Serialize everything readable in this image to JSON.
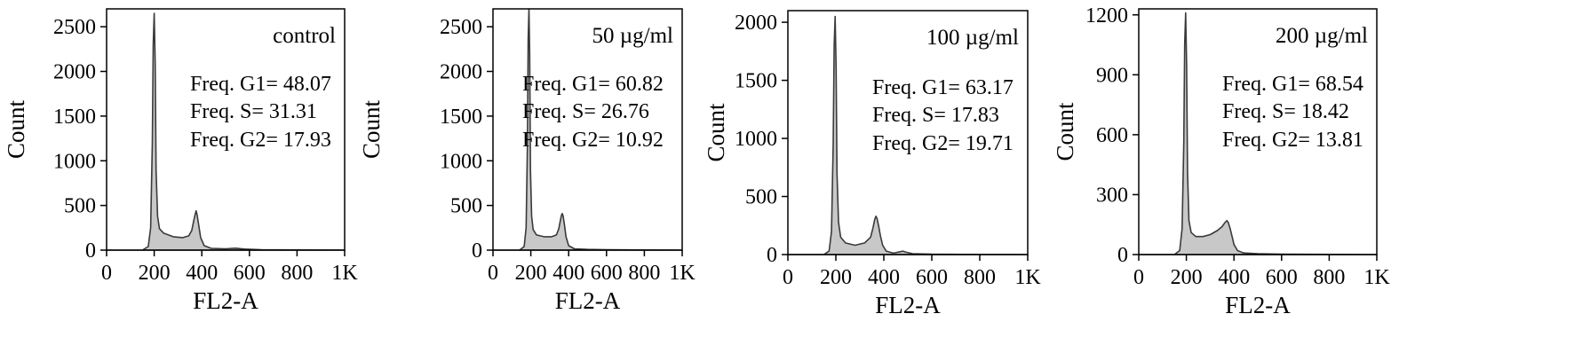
{
  "colors": {
    "fill": "#c8c8c8",
    "stroke": "#3a3a3a",
    "frame": "#000000"
  },
  "chart_data": [
    {
      "type": "area",
      "title": "control",
      "xlabel": "FL2-A",
      "ylabel": "Count",
      "xlim": [
        0,
        1000
      ],
      "ylim": [
        0,
        2700
      ],
      "x_ticks": [
        0,
        200,
        400,
        600,
        800,
        1000
      ],
      "x_tick_labels": [
        "0",
        "200",
        "400",
        "600",
        "800",
        "1K"
      ],
      "y_ticks": [
        0,
        500,
        1000,
        1500,
        2000,
        2500
      ],
      "y_tick_labels": [
        "0",
        "500",
        "1000",
        "1500",
        "2000",
        "2500"
      ],
      "annotations": [
        "Freq. G1= 48.07",
        "Freq. S= 31.31",
        "Freq. G2= 17.93"
      ],
      "x": [
        0,
        150,
        175,
        185,
        192,
        196,
        200,
        204,
        208,
        214,
        222,
        240,
        280,
        320,
        345,
        358,
        366,
        372,
        376,
        380,
        386,
        395,
        410,
        440,
        500,
        540,
        580,
        650,
        800,
        1000
      ],
      "values": [
        0,
        0,
        40,
        250,
        1200,
        2300,
        2650,
        2100,
        900,
        380,
        240,
        190,
        150,
        140,
        160,
        220,
        330,
        400,
        440,
        400,
        300,
        140,
        50,
        20,
        15,
        22,
        12,
        5,
        2,
        0
      ]
    },
    {
      "type": "area",
      "title": "50 µg/ml",
      "xlabel": "FL2-A",
      "ylabel": "Count",
      "xlim": [
        0,
        1000
      ],
      "ylim": [
        0,
        2700
      ],
      "x_ticks": [
        0,
        200,
        400,
        600,
        800,
        1000
      ],
      "x_tick_labels": [
        "0",
        "200",
        "400",
        "600",
        "800",
        "1K"
      ],
      "y_ticks": [
        0,
        500,
        1000,
        1500,
        2000,
        2500
      ],
      "y_tick_labels": [
        "0",
        "500",
        "1000",
        "1500",
        "2000",
        "2500"
      ],
      "annotations": [
        "Freq. G1= 60.82",
        "Freq. S= 26.76",
        "Freq. G2= 10.92"
      ],
      "x": [
        0,
        140,
        165,
        175,
        182,
        186,
        190,
        194,
        198,
        204,
        212,
        230,
        270,
        310,
        335,
        348,
        356,
        362,
        366,
        371,
        378,
        386,
        400,
        430,
        500,
        600,
        800,
        1000
      ],
      "values": [
        0,
        0,
        40,
        250,
        1200,
        2350,
        2700,
        2200,
        900,
        380,
        230,
        170,
        150,
        150,
        170,
        240,
        330,
        390,
        410,
        380,
        280,
        150,
        50,
        15,
        8,
        4,
        2,
        0
      ]
    },
    {
      "type": "area",
      "title": "100 µg/ml",
      "xlabel": "FL2-A",
      "ylabel": "Count",
      "xlim": [
        0,
        1000
      ],
      "ylim": [
        0,
        2100
      ],
      "x_ticks": [
        0,
        200,
        400,
        600,
        800,
        1000
      ],
      "x_tick_labels": [
        "0",
        "200",
        "400",
        "600",
        "800",
        "1K"
      ],
      "y_ticks": [
        0,
        500,
        1000,
        1500,
        2000
      ],
      "y_tick_labels": [
        "0",
        "500",
        "1000",
        "1500",
        "2000"
      ],
      "annotations": [
        "Freq. G1= 63.17",
        "Freq. S= 17.83",
        "Freq. G2= 19.71"
      ],
      "x": [
        0,
        150,
        172,
        182,
        189,
        193,
        197,
        201,
        205,
        211,
        220,
        240,
        280,
        320,
        345,
        355,
        362,
        367,
        372,
        378,
        386,
        395,
        410,
        440,
        470,
        480,
        490,
        520,
        600,
        800,
        1000
      ],
      "values": [
        0,
        0,
        30,
        200,
        950,
        1800,
        2050,
        1600,
        700,
        280,
        150,
        100,
        80,
        100,
        150,
        230,
        300,
        330,
        310,
        250,
        160,
        80,
        30,
        12,
        25,
        30,
        22,
        8,
        3,
        1,
        0
      ]
    },
    {
      "type": "area",
      "title": "200 µg/ml",
      "xlabel": "FL2-A",
      "ylabel": "Count",
      "xlim": [
        0,
        1000
      ],
      "ylim": [
        0,
        1230
      ],
      "x_ticks": [
        0,
        200,
        400,
        600,
        800,
        1000
      ],
      "x_tick_labels": [
        "0",
        "200",
        "400",
        "600",
        "800",
        "1K"
      ],
      "y_ticks": [
        0,
        300,
        600,
        900,
        1200
      ],
      "y_tick_labels": [
        "0",
        "300",
        "600",
        "900",
        "1200"
      ],
      "annotations": [
        "Freq. G1= 68.54",
        "Freq. S= 18.42",
        "Freq. G2= 13.81"
      ],
      "x": [
        0,
        150,
        172,
        182,
        189,
        193,
        197,
        201,
        205,
        211,
        220,
        240,
        270,
        300,
        330,
        350,
        362,
        370,
        376,
        384,
        392,
        400,
        415,
        440,
        500,
        600,
        800,
        1000
      ],
      "values": [
        0,
        0,
        20,
        130,
        560,
        1050,
        1210,
        950,
        420,
        170,
        110,
        90,
        90,
        100,
        120,
        140,
        160,
        170,
        160,
        130,
        90,
        50,
        20,
        8,
        4,
        2,
        1,
        0
      ]
    }
  ]
}
